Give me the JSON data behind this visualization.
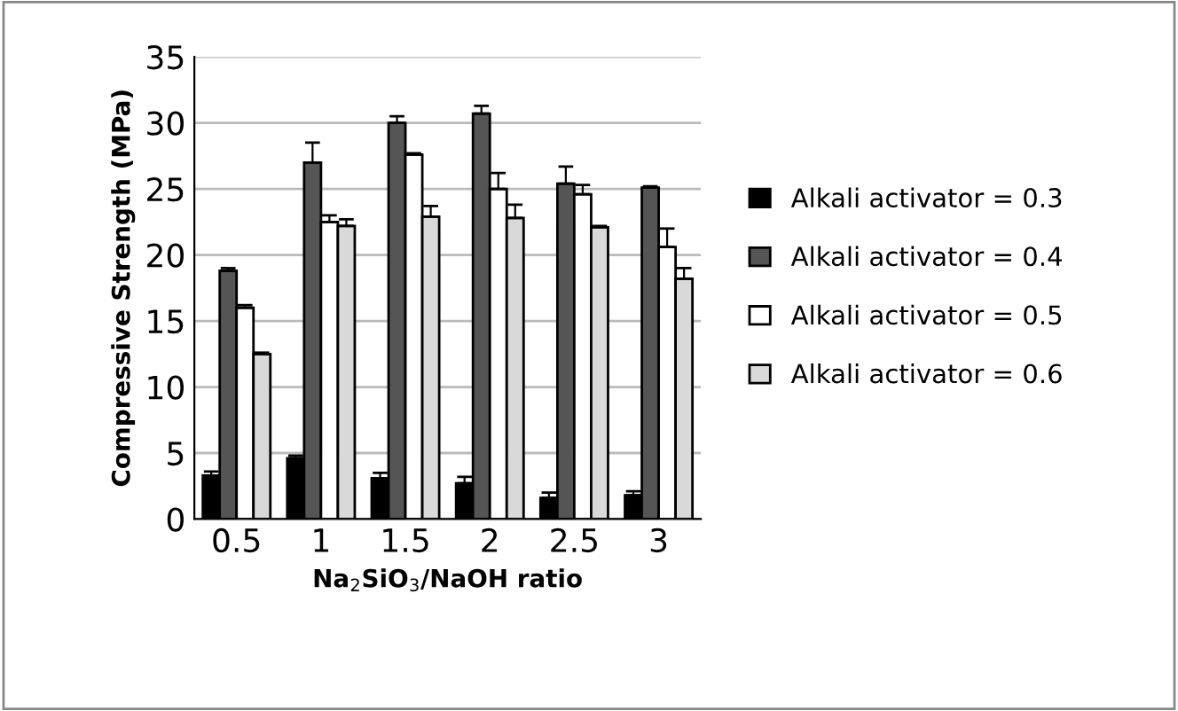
{
  "chart_data": {
    "type": "bar",
    "xlabel": "Na$_{2}$SiO$_{3}$/NaOH ratio",
    "ylabel": "Compressive Strength (MPa)",
    "categories": [
      "0.5",
      "1",
      "1.5",
      "2",
      "2.5",
      "3"
    ],
    "series": [
      {
        "name": "Alkali activator = 0.3",
        "color": "#000000",
        "values": [
          3.3,
          4.6,
          3.1,
          2.7,
          1.6,
          1.8
        ],
        "errors": [
          0.3,
          0.2,
          0.4,
          0.5,
          0.4,
          0.3
        ]
      },
      {
        "name": "Alkali activator = 0.4",
        "color": "#555555",
        "values": [
          18.8,
          27,
          30,
          30.7,
          25.4,
          25.1
        ],
        "errors": [
          0.2,
          1.5,
          0.5,
          0.6,
          1.3,
          0.1
        ]
      },
      {
        "name": "Alkali activator = 0.5",
        "color": "#ffffff",
        "values": [
          16,
          22.5,
          27.6,
          25,
          24.6,
          20.6
        ],
        "errors": [
          0.2,
          0.5,
          0.1,
          1.2,
          0.7,
          1.4
        ]
      },
      {
        "name": "Alkali activator = 0.6",
        "color": "#d9d9d9",
        "values": [
          12.5,
          22.2,
          22.9,
          22.8,
          22.1,
          18.2
        ],
        "errors": [
          0.1,
          0.5,
          0.8,
          1,
          0.1,
          0.8
        ]
      }
    ],
    "ylim": [
      0,
      35
    ],
    "yticks": [
      0,
      5,
      10,
      15,
      20,
      25,
      30,
      35
    ],
    "grid": "y",
    "legend": "right"
  }
}
